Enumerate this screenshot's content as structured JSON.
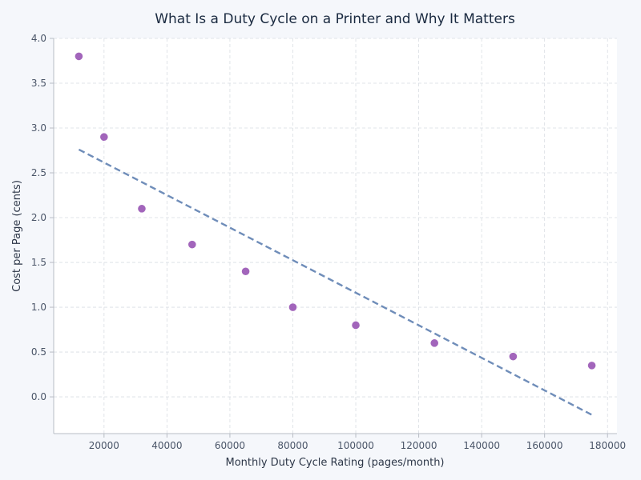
{
  "chart_data": {
    "type": "scatter",
    "title": "What Is a Duty Cycle on a Printer and Why It Matters",
    "xlabel": "Monthly Duty Cycle Rating (pages/month)",
    "ylabel": "Cost per Page (cents)",
    "xlim": [
      4000,
      183000
    ],
    "ylim": [
      -0.41,
      4.0
    ],
    "xticks": [
      20000,
      40000,
      60000,
      80000,
      100000,
      120000,
      140000,
      160000,
      180000
    ],
    "yticks": [
      0.0,
      0.5,
      1.0,
      1.5,
      2.0,
      2.5,
      3.0,
      3.5,
      4.0
    ],
    "grid": true,
    "points": [
      {
        "x": 12000,
        "y": 3.8
      },
      {
        "x": 20000,
        "y": 2.9
      },
      {
        "x": 32000,
        "y": 2.1
      },
      {
        "x": 48000,
        "y": 1.7
      },
      {
        "x": 65000,
        "y": 1.4
      },
      {
        "x": 80000,
        "y": 1.0
      },
      {
        "x": 100000,
        "y": 0.8
      },
      {
        "x": 125000,
        "y": 0.6
      },
      {
        "x": 150000,
        "y": 0.45
      },
      {
        "x": 175000,
        "y": 0.35
      }
    ],
    "trendline": {
      "x": [
        12000,
        175000
      ],
      "y": [
        2.76,
        -0.2
      ]
    },
    "colors": {
      "points": "#9b59b6",
      "trendline": "#6f8db9",
      "background": "#f5f7fb",
      "plot_background": "#ffffff"
    }
  }
}
